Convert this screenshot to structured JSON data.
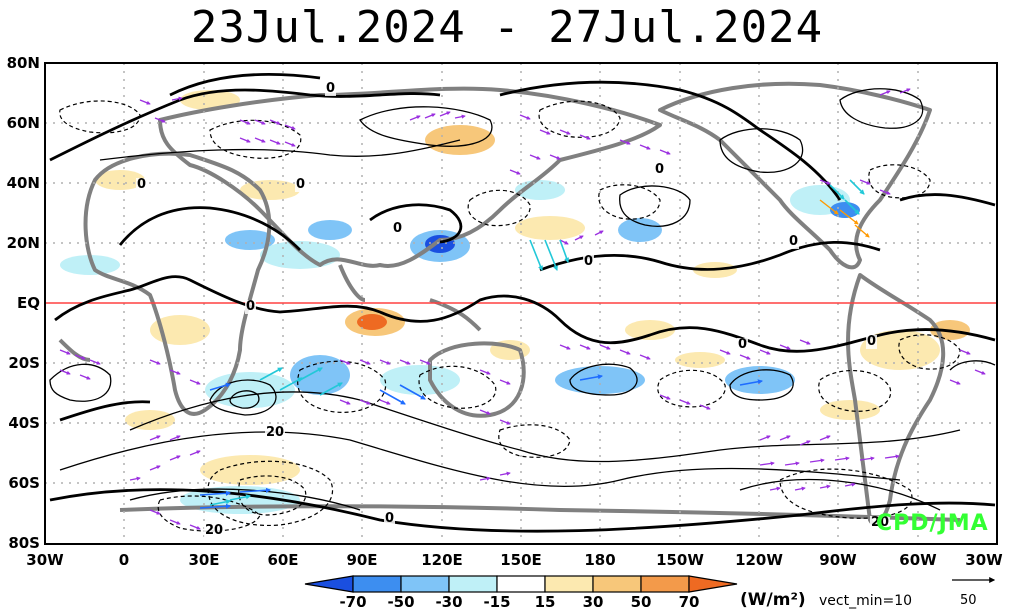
{
  "title": "23Jul.2024 - 27Jul.2024",
  "credit": "CPD/JMA",
  "lat_labels": [
    "80N",
    "60N",
    "40N",
    "20N",
    "EQ",
    "20S",
    "40S",
    "60S",
    "80S"
  ],
  "lon_labels": [
    "30W",
    "0",
    "30E",
    "60E",
    "90E",
    "120E",
    "150E",
    "180",
    "150W",
    "120W",
    "90W",
    "60W",
    "30W"
  ],
  "colorbar": {
    "labels": [
      "-70",
      "-50",
      "-30",
      "-15",
      "15",
      "30",
      "50",
      "70"
    ],
    "units": "(W/m²)",
    "colors": [
      "#1a4fe0",
      "#3d8ef0",
      "#7fc4f7",
      "#bff0f7",
      "#ffffff",
      "#fce9b0",
      "#f7c77a",
      "#f39a4a",
      "#ee6a22"
    ]
  },
  "vector_note": "vect_min=10",
  "reference_vector": {
    "value": "50"
  },
  "contour_labels": [
    {
      "text": "0"
    },
    {
      "text": "0"
    },
    {
      "text": "0"
    },
    {
      "text": "0"
    },
    {
      "text": "0"
    },
    {
      "text": "0"
    },
    {
      "text": "0"
    },
    {
      "text": "0"
    },
    {
      "text": "0"
    },
    {
      "text": "0"
    },
    {
      "text": "20"
    },
    {
      "text": "20"
    },
    {
      "text": "20"
    },
    {
      "text": "0"
    }
  ],
  "colors": {
    "land": "#808080",
    "equator": "#ff4040",
    "vector_weak": "#9b30e0",
    "vector_mid": "#22c8d8",
    "vector_strong": "#1e6cff",
    "vector_orange": "#ff9900"
  }
}
